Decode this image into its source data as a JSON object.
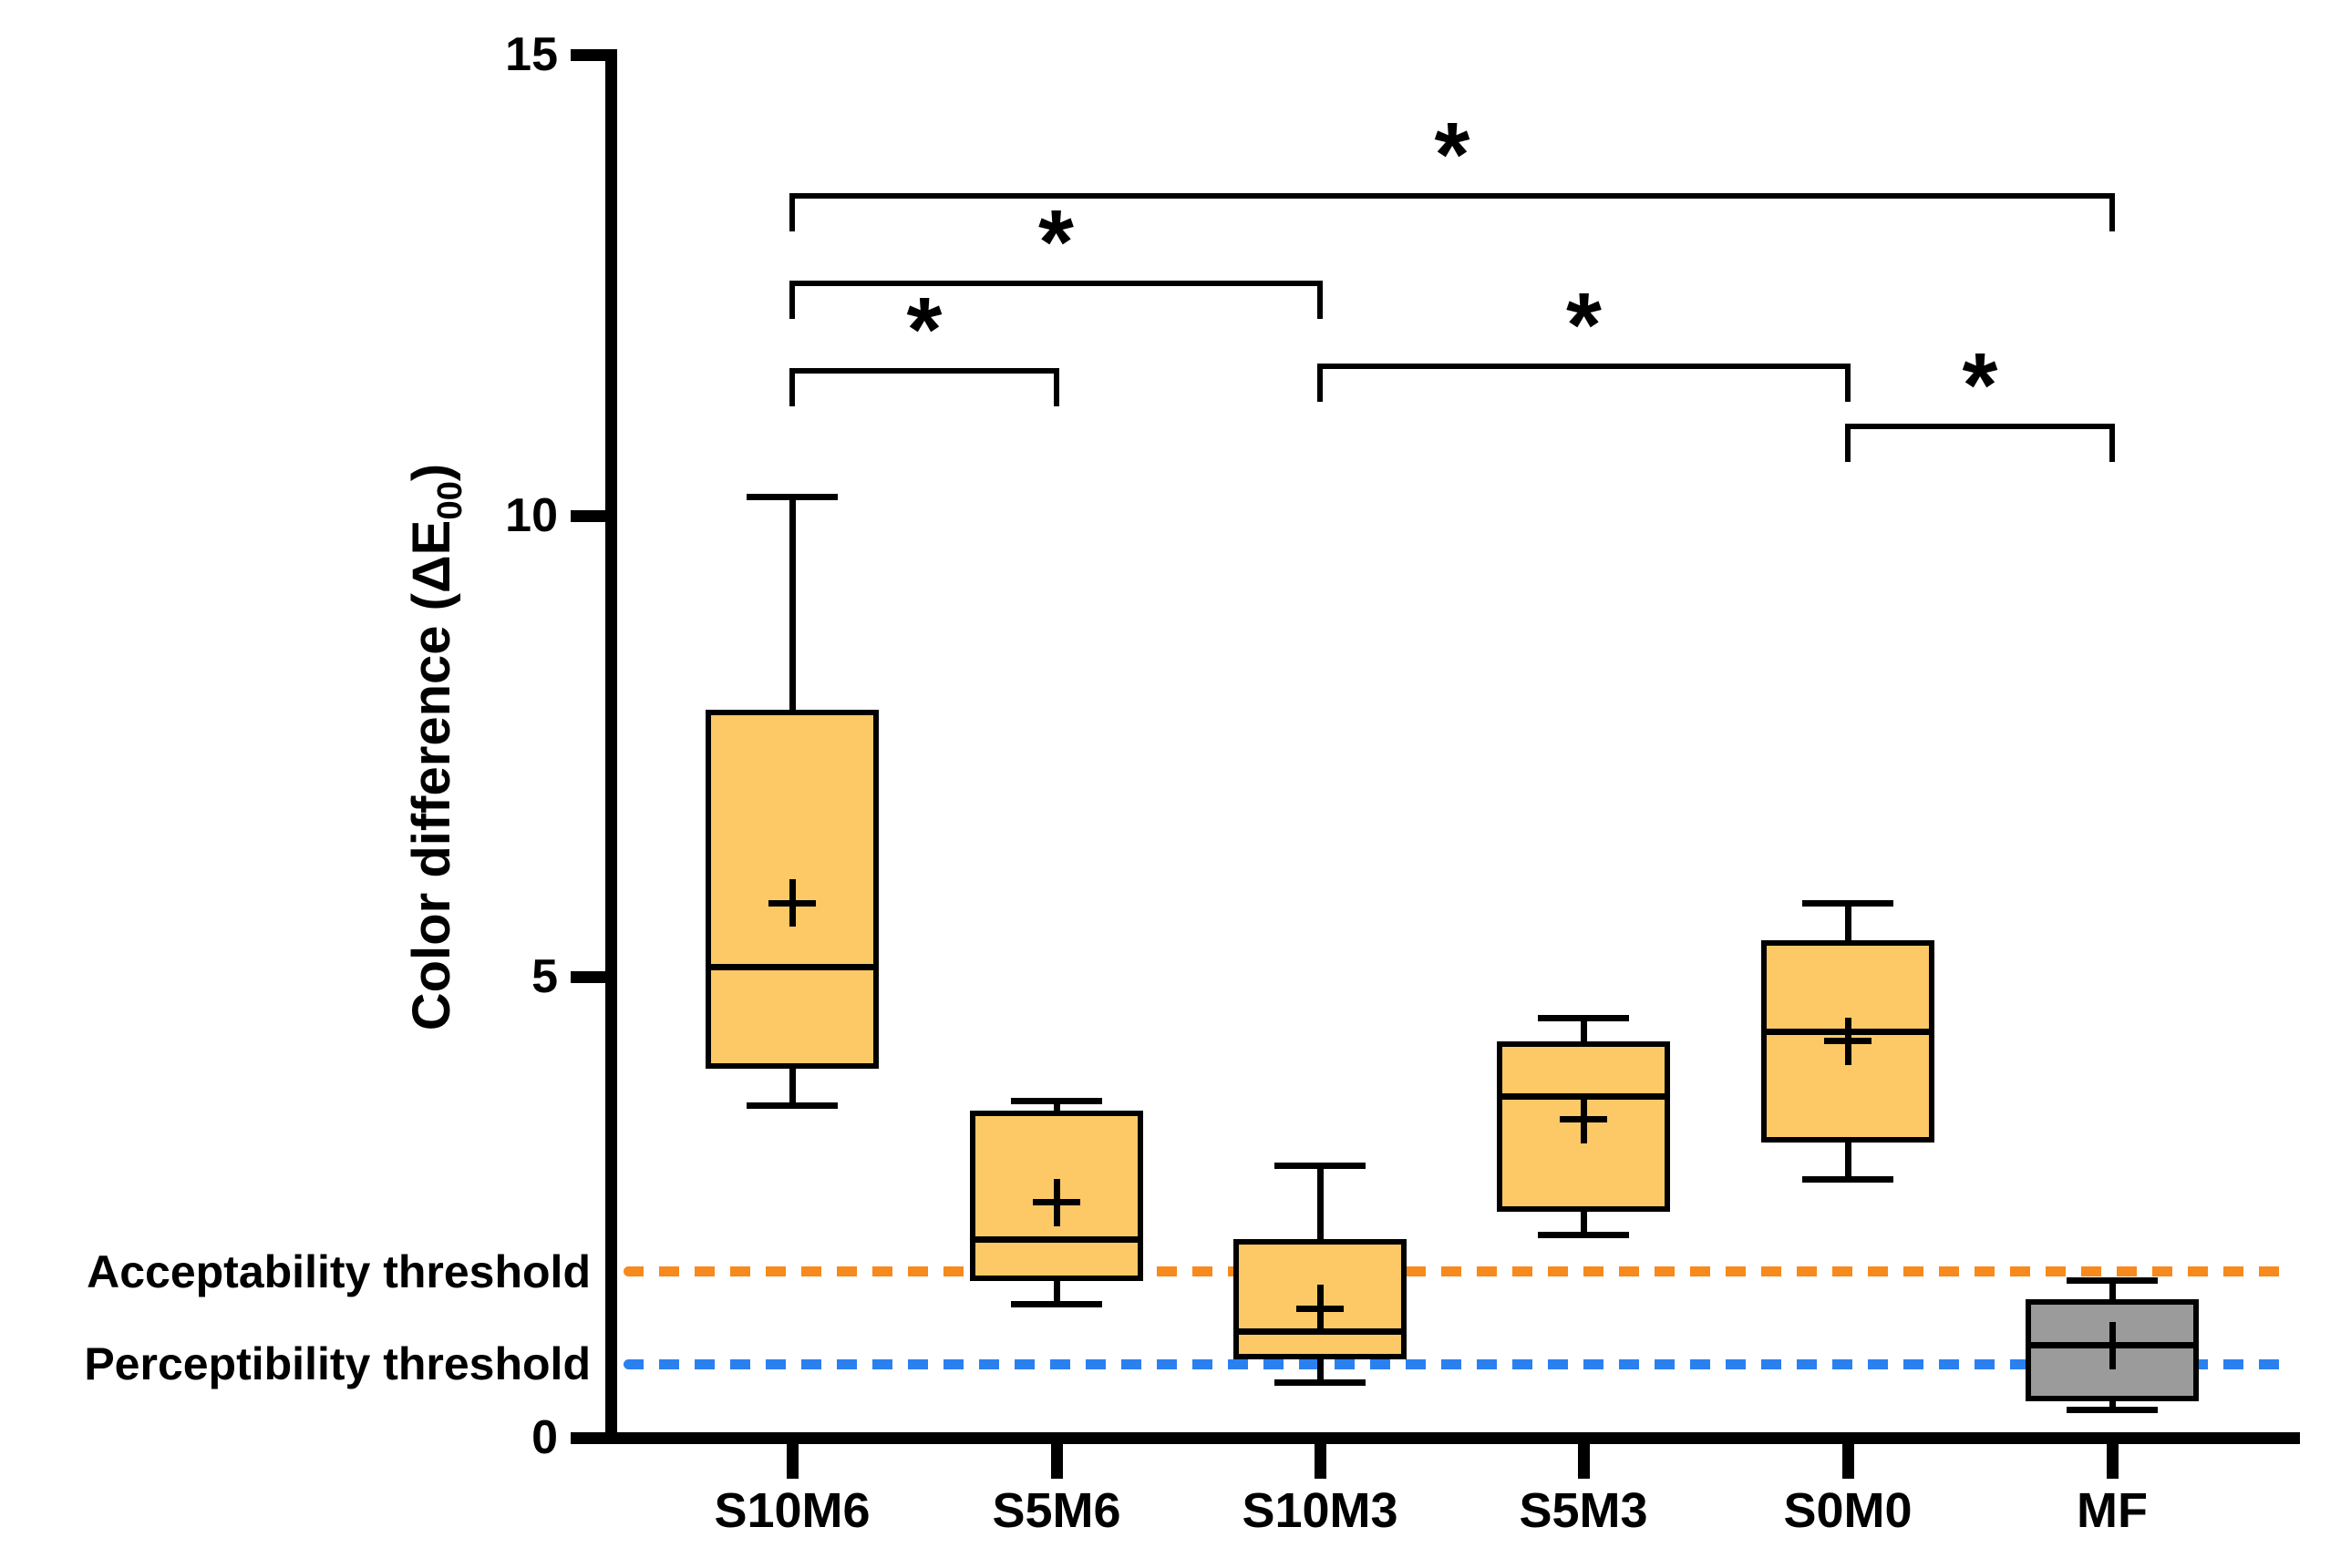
{
  "chart_data": {
    "type": "box",
    "ylabel_prefix": "Color difference (",
    "ylabel_delta_e": "ΔE",
    "ylabel_sub": "00",
    "ylabel_suffix": ")",
    "categories": [
      "S10M6",
      "S5M6",
      "S10M3",
      "S5M3",
      "S0M0",
      "MF"
    ],
    "y_axis": {
      "min": 0,
      "max": 15,
      "ticks": [
        0,
        5,
        10,
        15
      ],
      "tick_labels": [
        "0",
        "5",
        "10",
        "15"
      ]
    },
    "series": [
      {
        "name": "S10M6",
        "min": 3.6,
        "q1": 4.0,
        "median": 5.1,
        "q3": 7.9,
        "max": 10.2,
        "mean": 5.8,
        "fill": "#FCC966"
      },
      {
        "name": "S5M6",
        "min": 1.45,
        "q1": 1.7,
        "median": 2.15,
        "q3": 3.55,
        "max": 3.65,
        "mean": 2.55,
        "fill": "#FCC966"
      },
      {
        "name": "S10M3",
        "min": 0.6,
        "q1": 0.85,
        "median": 1.15,
        "q3": 2.15,
        "max": 2.95,
        "mean": 1.4,
        "fill": "#FCC966"
      },
      {
        "name": "S5M3",
        "min": 2.2,
        "q1": 2.45,
        "median": 3.7,
        "q3": 4.3,
        "max": 4.55,
        "mean": 3.45,
        "fill": "#FCC966"
      },
      {
        "name": "S0M0",
        "min": 2.8,
        "q1": 3.2,
        "median": 4.4,
        "q3": 5.4,
        "max": 5.8,
        "mean": 4.3,
        "fill": "#FCC966"
      },
      {
        "name": "MF",
        "min": 0.3,
        "q1": 0.4,
        "median": 1.0,
        "q3": 1.5,
        "max": 1.7,
        "mean": 1.0,
        "fill": "#9B9B9B"
      }
    ],
    "thresholds": [
      {
        "id": "acceptability",
        "label": "Acceptability threshold",
        "value": 1.8,
        "color": "#F8891C"
      },
      {
        "id": "perceptibility",
        "label": "Perceptibility threshold",
        "value": 0.8,
        "color": "#2B80F0"
      }
    ],
    "significance_brackets": [
      {
        "from": "S10M6",
        "to": "S5M6",
        "height": 11.6,
        "label": "*"
      },
      {
        "from": "S10M6",
        "to": "S10M3",
        "height": 12.55,
        "label": "*"
      },
      {
        "from": "S10M6",
        "to": "MF",
        "height": 13.5,
        "label": "*"
      },
      {
        "from": "S10M3",
        "to": "S0M0",
        "height": 11.65,
        "label": "*"
      },
      {
        "from": "S0M0",
        "to": "MF",
        "height": 11.0,
        "label": "*"
      }
    ],
    "grid": "off",
    "legend": "none"
  }
}
